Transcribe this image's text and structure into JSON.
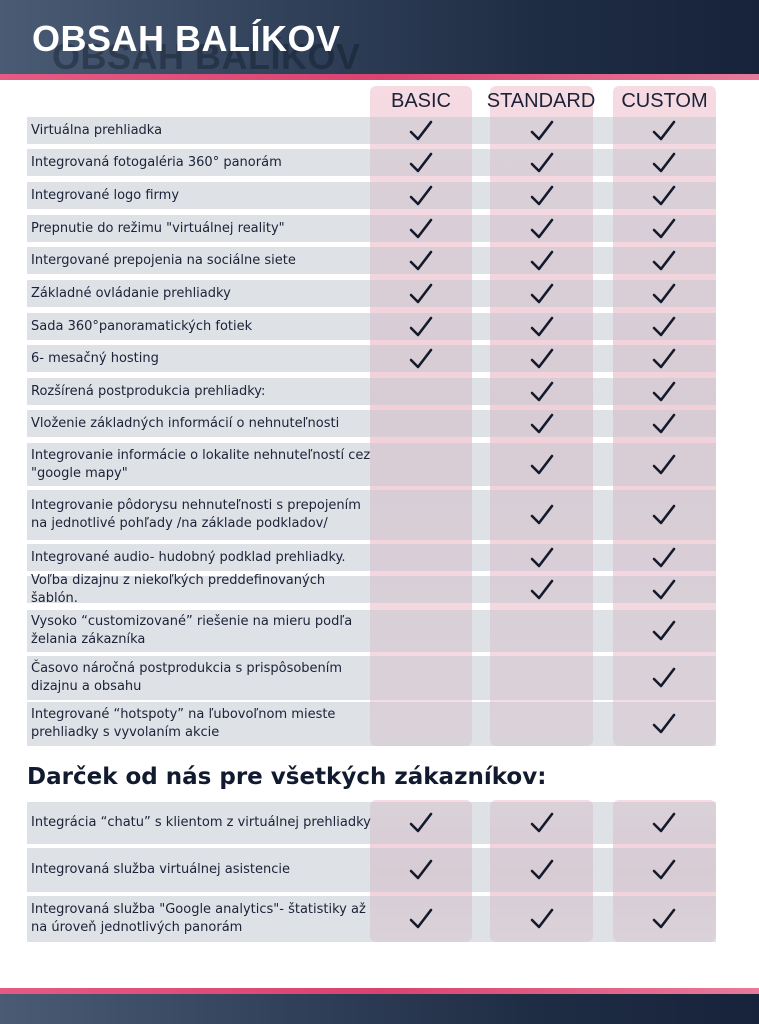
{
  "header": {
    "title": "OBSAH BALÍKOV"
  },
  "columns": [
    "BASIC",
    "STANDARD",
    "CUSTOM"
  ],
  "features": [
    {
      "label": "Virtuálna prehliadka",
      "basic": true,
      "standard": true,
      "custom": true
    },
    {
      "label": "Integrovaná fotogaléria 360° panorám",
      "basic": true,
      "standard": true,
      "custom": true
    },
    {
      "label": "Integrované logo firmy",
      "basic": true,
      "standard": true,
      "custom": true
    },
    {
      "label": "Prepnutie do režimu \"virtuálnej reality\"",
      "basic": true,
      "standard": true,
      "custom": true
    },
    {
      "label": "Intergované prepojenia na sociálne siete",
      "basic": true,
      "standard": true,
      "custom": true
    },
    {
      "label": "Základné ovládanie prehliadky",
      "basic": true,
      "standard": true,
      "custom": true
    },
    {
      "label": "Sada 360°panoramatických fotiek",
      "basic": true,
      "standard": true,
      "custom": true
    },
    {
      "label": "6- mesačný hosting",
      "basic": true,
      "standard": true,
      "custom": true
    },
    {
      "label": "Rozšírená postprodukcia prehliadky:",
      "basic": false,
      "standard": true,
      "custom": true
    },
    {
      "label": "Vloženie základných informácií o nehnuteľnosti",
      "basic": false,
      "standard": true,
      "custom": true
    },
    {
      "label": "Integrovanie informácie o lokalite nehnuteľností cez \"google mapy\"",
      "basic": false,
      "standard": true,
      "custom": true
    },
    {
      "label": "Integrovanie pôdorysu nehnuteľnosti s prepojením na jednotlivé pohľady /na základe podkladov/",
      "basic": false,
      "standard": true,
      "custom": true
    },
    {
      "label": "Integrované audio- hudobný podklad prehliadky.",
      "basic": false,
      "standard": true,
      "custom": true
    },
    {
      "label": "Voľba dizajnu z niekoľkých preddefinovaných šablón.",
      "basic": false,
      "standard": true,
      "custom": true
    },
    {
      "label": "Vysoko “customizované” riešenie na mieru podľa želania zákazníka",
      "basic": false,
      "standard": false,
      "custom": true
    },
    {
      "label": "Časovo náročná postprodukcia s prispôsobením dizajnu a obsahu",
      "basic": false,
      "standard": false,
      "custom": true
    },
    {
      "label": "Integrované “hotspoty” na ľubovoľnom mieste prehliadky s vyvolaním akcie",
      "basic": false,
      "standard": false,
      "custom": true
    }
  ],
  "gift": {
    "title": "Darček od nás pre všetkých zákazníkov:",
    "features": [
      {
        "label": "Integrácia “chatu” s klientom z virtuálnej prehliadky",
        "basic": true,
        "standard": true,
        "custom": true
      },
      {
        "label": "Integrovaná služba virtuálnej asistencie",
        "basic": true,
        "standard": true,
        "custom": true
      },
      {
        "label": "Integrovaná služba \"Google analytics\"- štatistiky až na úroveň jednotlivých panorám",
        "basic": true,
        "standard": true,
        "custom": true
      }
    ]
  },
  "icons": {
    "check": "check-icon"
  },
  "colors": {
    "accent": "#d9436f",
    "header": "#1f2d44",
    "column_tint": "#f3d5de"
  }
}
